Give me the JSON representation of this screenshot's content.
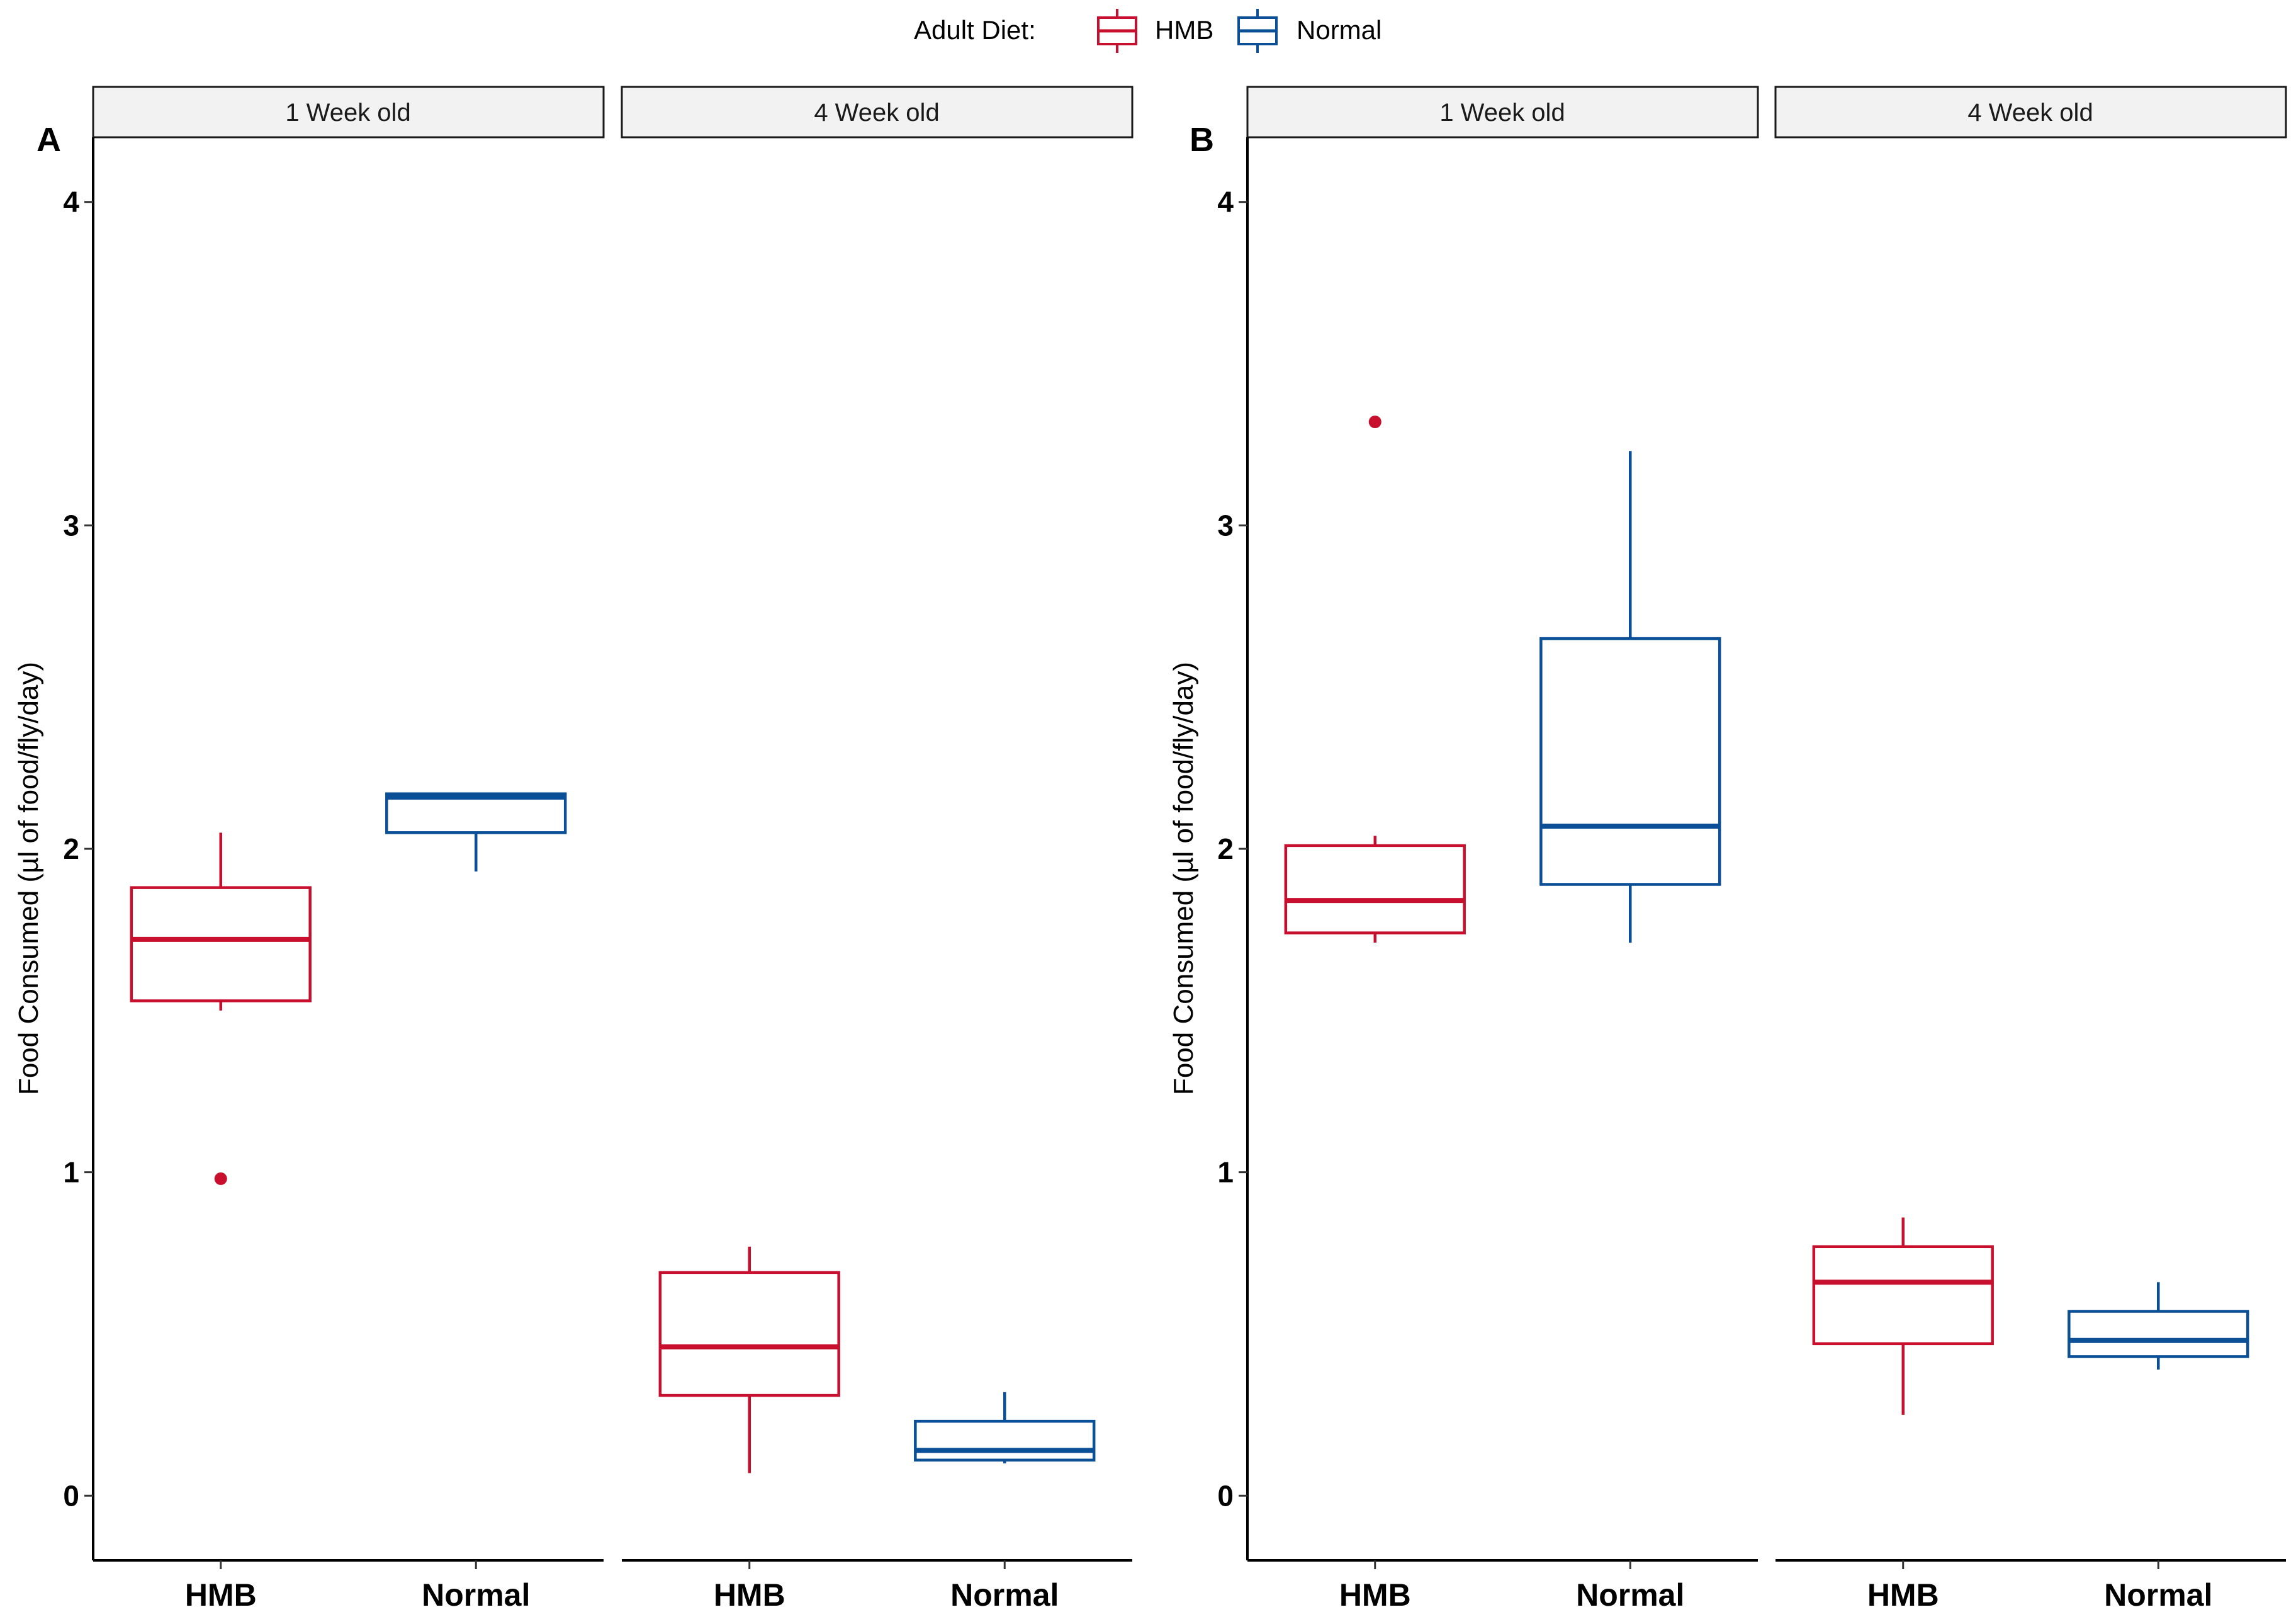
{
  "legend": {
    "title": "Adult Diet:",
    "items": [
      {
        "label": "HMB",
        "color": "#c8102e"
      },
      {
        "label": "Normal",
        "color": "#0b4f96"
      }
    ]
  },
  "chart_data": [
    {
      "type": "box",
      "tag": "A",
      "ylabel": "Food Consumed (µl of food/fly/day)",
      "ylim": [
        -0.2,
        4.2
      ],
      "yticks": [
        "0",
        "1",
        "2",
        "3",
        "4"
      ],
      "categories": [
        "HMB",
        "Normal"
      ],
      "facets": [
        {
          "label": "1 Week old",
          "boxes": [
            {
              "group": "HMB",
              "lower": 1.5,
              "q1": 1.53,
              "median": 1.72,
              "q3": 1.88,
              "upper": 2.05,
              "outliers": [
                0.98
              ]
            },
            {
              "group": "Normal",
              "lower": 1.93,
              "q1": 2.05,
              "median": 2.16,
              "q3": 2.17,
              "upper": 2.17,
              "outliers": []
            }
          ]
        },
        {
          "label": "4 Week old",
          "boxes": [
            {
              "group": "HMB",
              "lower": 0.07,
              "q1": 0.31,
              "median": 0.46,
              "q3": 0.69,
              "upper": 0.77,
              "outliers": []
            },
            {
              "group": "Normal",
              "lower": 0.1,
              "q1": 0.11,
              "median": 0.14,
              "q3": 0.23,
              "upper": 0.32,
              "outliers": []
            }
          ]
        }
      ]
    },
    {
      "type": "box",
      "tag": "B",
      "ylabel": "Food Consumed (µl of food/fly/day)",
      "ylim": [
        -0.2,
        4.2
      ],
      "yticks": [
        "0",
        "1",
        "2",
        "3",
        "4"
      ],
      "categories": [
        "HMB",
        "Normal"
      ],
      "facets": [
        {
          "label": "1 Week old",
          "boxes": [
            {
              "group": "HMB",
              "lower": 1.71,
              "q1": 1.74,
              "median": 1.84,
              "q3": 2.01,
              "upper": 2.04,
              "outliers": [
                3.32
              ]
            },
            {
              "group": "Normal",
              "lower": 1.71,
              "q1": 1.89,
              "median": 2.07,
              "q3": 2.65,
              "upper": 3.23,
              "outliers": []
            }
          ]
        },
        {
          "label": "4 Week old",
          "boxes": [
            {
              "group": "HMB",
              "lower": 0.25,
              "q1": 0.47,
              "median": 0.66,
              "q3": 0.77,
              "upper": 0.86,
              "outliers": []
            },
            {
              "group": "Normal",
              "lower": 0.39,
              "q1": 0.43,
              "median": 0.48,
              "q3": 0.57,
              "upper": 0.66,
              "outliers": []
            }
          ]
        }
      ]
    }
  ]
}
